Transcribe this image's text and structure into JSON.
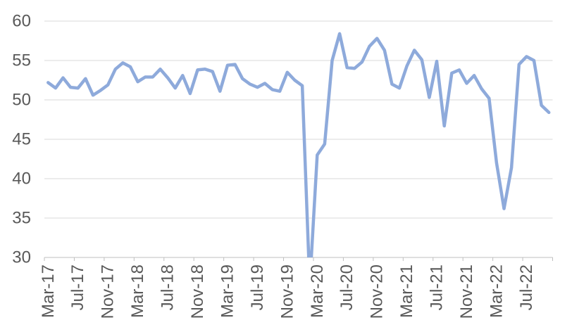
{
  "chart_data": {
    "type": "line",
    "title": "",
    "xlabel": "",
    "ylabel": "",
    "legend": "none",
    "grid": true,
    "x": [
      "Mar-17",
      "Apr-17",
      "May-17",
      "Jun-17",
      "Jul-17",
      "Aug-17",
      "Sep-17",
      "Oct-17",
      "Nov-17",
      "Dec-17",
      "Jan-18",
      "Feb-18",
      "Mar-18",
      "Apr-18",
      "May-18",
      "Jun-18",
      "Jul-18",
      "Aug-18",
      "Sep-18",
      "Oct-18",
      "Nov-18",
      "Dec-18",
      "Jan-19",
      "Feb-19",
      "Mar-19",
      "Apr-19",
      "May-19",
      "Jun-19",
      "Jul-19",
      "Aug-19",
      "Sep-19",
      "Oct-19",
      "Nov-19",
      "Dec-19",
      "Jan-20",
      "Feb-20",
      "Mar-20",
      "Apr-20",
      "May-20",
      "Jun-20",
      "Jul-20",
      "Aug-20",
      "Sep-20",
      "Oct-20",
      "Nov-20",
      "Dec-20",
      "Jan-21",
      "Feb-21",
      "Mar-21",
      "Apr-21",
      "May-21",
      "Jun-21",
      "Jul-21",
      "Aug-21",
      "Sep-21",
      "Oct-21",
      "Nov-21",
      "Dec-21",
      "Jan-22",
      "Feb-22",
      "Mar-22",
      "Apr-22",
      "May-22",
      "Jun-22",
      "Jul-22",
      "Aug-22",
      "Sep-22",
      "Oct-22"
    ],
    "series": [
      {
        "name": "index",
        "values": [
          52.2,
          51.5,
          52.8,
          51.6,
          51.5,
          52.7,
          50.6,
          51.2,
          51.9,
          53.9,
          54.7,
          54.2,
          52.3,
          52.9,
          52.9,
          53.9,
          52.8,
          51.5,
          53.1,
          50.8,
          53.8,
          53.9,
          53.6,
          51.1,
          54.4,
          54.5,
          52.7,
          52.0,
          51.6,
          52.1,
          51.3,
          51.1,
          53.5,
          52.5,
          51.8,
          26.5,
          43.0,
          44.4,
          55.0,
          58.4,
          54.1,
          54.0,
          54.8,
          56.8,
          57.8,
          56.3,
          52.0,
          51.5,
          54.3,
          56.3,
          55.1,
          50.3,
          54.9,
          46.7,
          53.4,
          53.8,
          52.1,
          53.1,
          51.4,
          50.2,
          42.0,
          36.2,
          41.4,
          54.5,
          55.5,
          55.0,
          49.3,
          48.4
        ]
      }
    ],
    "x_axis": {
      "label_every": 4,
      "tick_every": 4,
      "tick_labels": [
        "Mar-17",
        "Jul-17",
        "Nov-17",
        "Mar-18",
        "Jul-18",
        "Nov-18",
        "Mar-19",
        "Jul-19",
        "Nov-19",
        "Mar-20",
        "Jul-20",
        "Nov-20",
        "Mar-21",
        "Jul-21",
        "Nov-21",
        "Mar-22",
        "Jul-22"
      ],
      "label_rotation_deg": -90
    },
    "y_axis": {
      "min": 30,
      "max": 60,
      "step": 5,
      "tick_labels": [
        "60",
        "55",
        "50",
        "45",
        "40",
        "35",
        "30"
      ],
      "clip_below_min": true
    },
    "colors": {
      "line": "#8EAADB",
      "gridline": "#D9D9D9",
      "axis_line": "#BFBFBF",
      "tick": "#BFBFBF",
      "label": "#595959",
      "background": "#FFFFFF"
    }
  }
}
